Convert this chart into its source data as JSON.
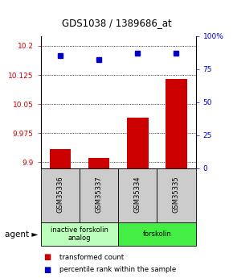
{
  "title": "GDS1038 / 1389686_at",
  "samples": [
    "GSM35336",
    "GSM35337",
    "GSM35334",
    "GSM35335"
  ],
  "bar_values": [
    9.935,
    9.912,
    10.015,
    10.115
  ],
  "percentile_values": [
    85,
    82,
    87,
    87
  ],
  "bar_color": "#cc0000",
  "percentile_color": "#0000cc",
  "ylim_left": [
    9.885,
    10.225
  ],
  "ylim_right": [
    0,
    100
  ],
  "yticks_left": [
    9.9,
    9.975,
    10.05,
    10.125,
    10.2
  ],
  "ytick_labels_left": [
    "9.9",
    "9.975",
    "10.05",
    "10.125",
    "10.2"
  ],
  "yticks_right": [
    0,
    25,
    50,
    75,
    100
  ],
  "ytick_labels_right": [
    "0",
    "25",
    "50",
    "75",
    "100%"
  ],
  "groups": [
    {
      "label": "inactive forskolin\nanalog",
      "color": "#bbffbb",
      "samples": [
        0,
        1
      ]
    },
    {
      "label": "forskolin",
      "color": "#44ee44",
      "samples": [
        2,
        3
      ]
    }
  ],
  "legend_items": [
    {
      "color": "#cc0000",
      "label": "transformed count"
    },
    {
      "color": "#0000cc",
      "label": "percentile rank within the sample"
    }
  ],
  "bar_width": 0.55
}
